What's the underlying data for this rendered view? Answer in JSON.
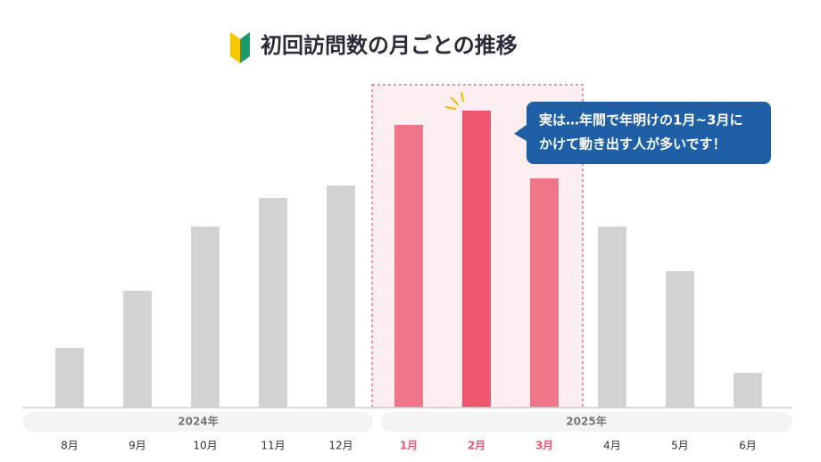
{
  "chart_data": {
    "type": "bar",
    "title": "初回訪問数の月ごとの推移",
    "categories": [
      "8月",
      "9月",
      "10月",
      "11月",
      "12月",
      "1月",
      "2月",
      "3月",
      "4月",
      "5月",
      "6月"
    ],
    "values": [
      67,
      131,
      203,
      235,
      249,
      317,
      333,
      257,
      203,
      153,
      39
    ],
    "color": "#d3d3d3",
    "colors": [
      "#d3d3d3",
      "#d3d3d3",
      "#d3d3d3",
      "#d3d3d3",
      "#d3d3d3",
      "#f07589",
      "#ee566f",
      "#f07589",
      "#d3d3d3",
      "#d3d3d3",
      "#d3d3d3"
    ],
    "x_groups": [
      "2024年",
      "2025年"
    ],
    "annotation": [
      "実は…年間で年明けの1月~3月に",
      "かけて動き出す人が多いです！"
    ],
    "ylim": [
      0,
      360
    ]
  }
}
